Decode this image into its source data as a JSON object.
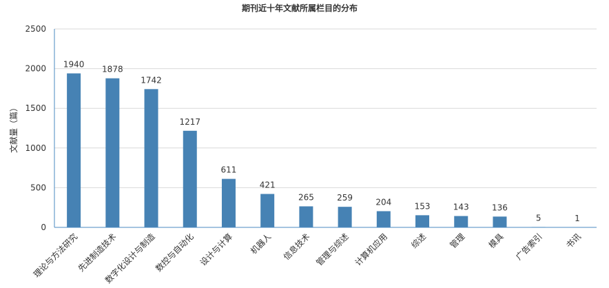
{
  "chart_data": {
    "type": "bar",
    "title": "期刊近十年文献所属栏目的分布",
    "xlabel": "",
    "ylabel": "文献量（篇）",
    "ylim": [
      0,
      2500
    ],
    "yticks": [
      0,
      500,
      1000,
      1500,
      2000,
      2500
    ],
    "grid": true,
    "bar_color": "#4682b4",
    "categories": [
      "理论与方法研究",
      "先进制造技术",
      "数字化设计与制造",
      "数控与自动化",
      "设计与计算",
      "机器人",
      "信息技术",
      "管理与综述",
      "计算机应用",
      "综述",
      "管理",
      "模具",
      "广告索引",
      "书讯"
    ],
    "values": [
      1940,
      1878,
      1742,
      1217,
      611,
      421,
      265,
      259,
      204,
      153,
      143,
      136,
      5,
      1
    ],
    "data_labels": [
      "1940",
      "1878",
      "1742",
      "1217",
      "611",
      "421",
      "265",
      "259",
      "204",
      "153",
      "143",
      "136",
      "5",
      "1"
    ]
  }
}
